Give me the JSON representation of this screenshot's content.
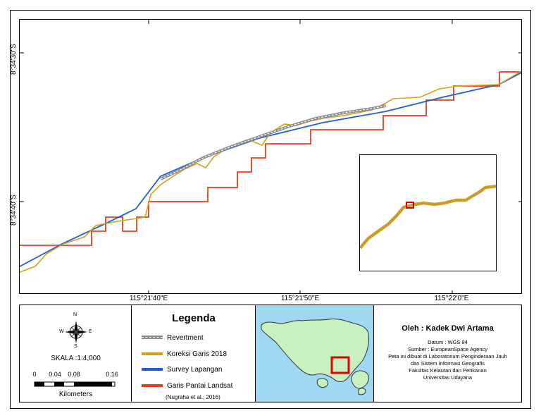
{
  "map": {
    "lat_labels": [
      "8°34'30\"S",
      "8°34'40\"S"
    ],
    "lon_labels": [
      "115°21'40\"E",
      "115°21'50\"E",
      "115°22'0\"E"
    ]
  },
  "legend": {
    "title": "Legenda",
    "items": [
      {
        "label": "Revertment",
        "color": "#8c8c8c",
        "icon": "dashed-gray-line"
      },
      {
        "label": "Koreksi Garis 2018",
        "color": "#d4a017",
        "icon": "gold-line"
      },
      {
        "label": "Survey Lapangan",
        "color": "#1f5fd6",
        "icon": "blue-line"
      },
      {
        "label": "Garis Pantai Landsat",
        "color": "#e8401c",
        "icon": "red-line"
      }
    ],
    "note": "(Nugraha et al., 2016)"
  },
  "scale": {
    "north_icon": "compass-rose-icon",
    "compass": {
      "n": "N",
      "s": "S",
      "e": "E",
      "w": "W"
    },
    "ratio": "SKALA :1:4,000",
    "ticks": [
      "0",
      "0.04",
      "0.08",
      "0.16"
    ],
    "unit": "Kilometers"
  },
  "info": {
    "author": "Oleh : Kadek Dwi Artama",
    "datum": "Datum : WGS 84",
    "source": "Sumber : EuropeanSpace Agency",
    "made1": "Peta ini dibuat di Laboratorium Penginderaan Jauh",
    "made2": "dan Sistem Informasi Geografis",
    "faculty": "Fakultas Kelautan dan Perikanan",
    "university": "Universitas Udayana"
  },
  "colors": {
    "sea": "#9fd8f3",
    "land": "#c8f0c0",
    "highlight": "#e00000"
  }
}
